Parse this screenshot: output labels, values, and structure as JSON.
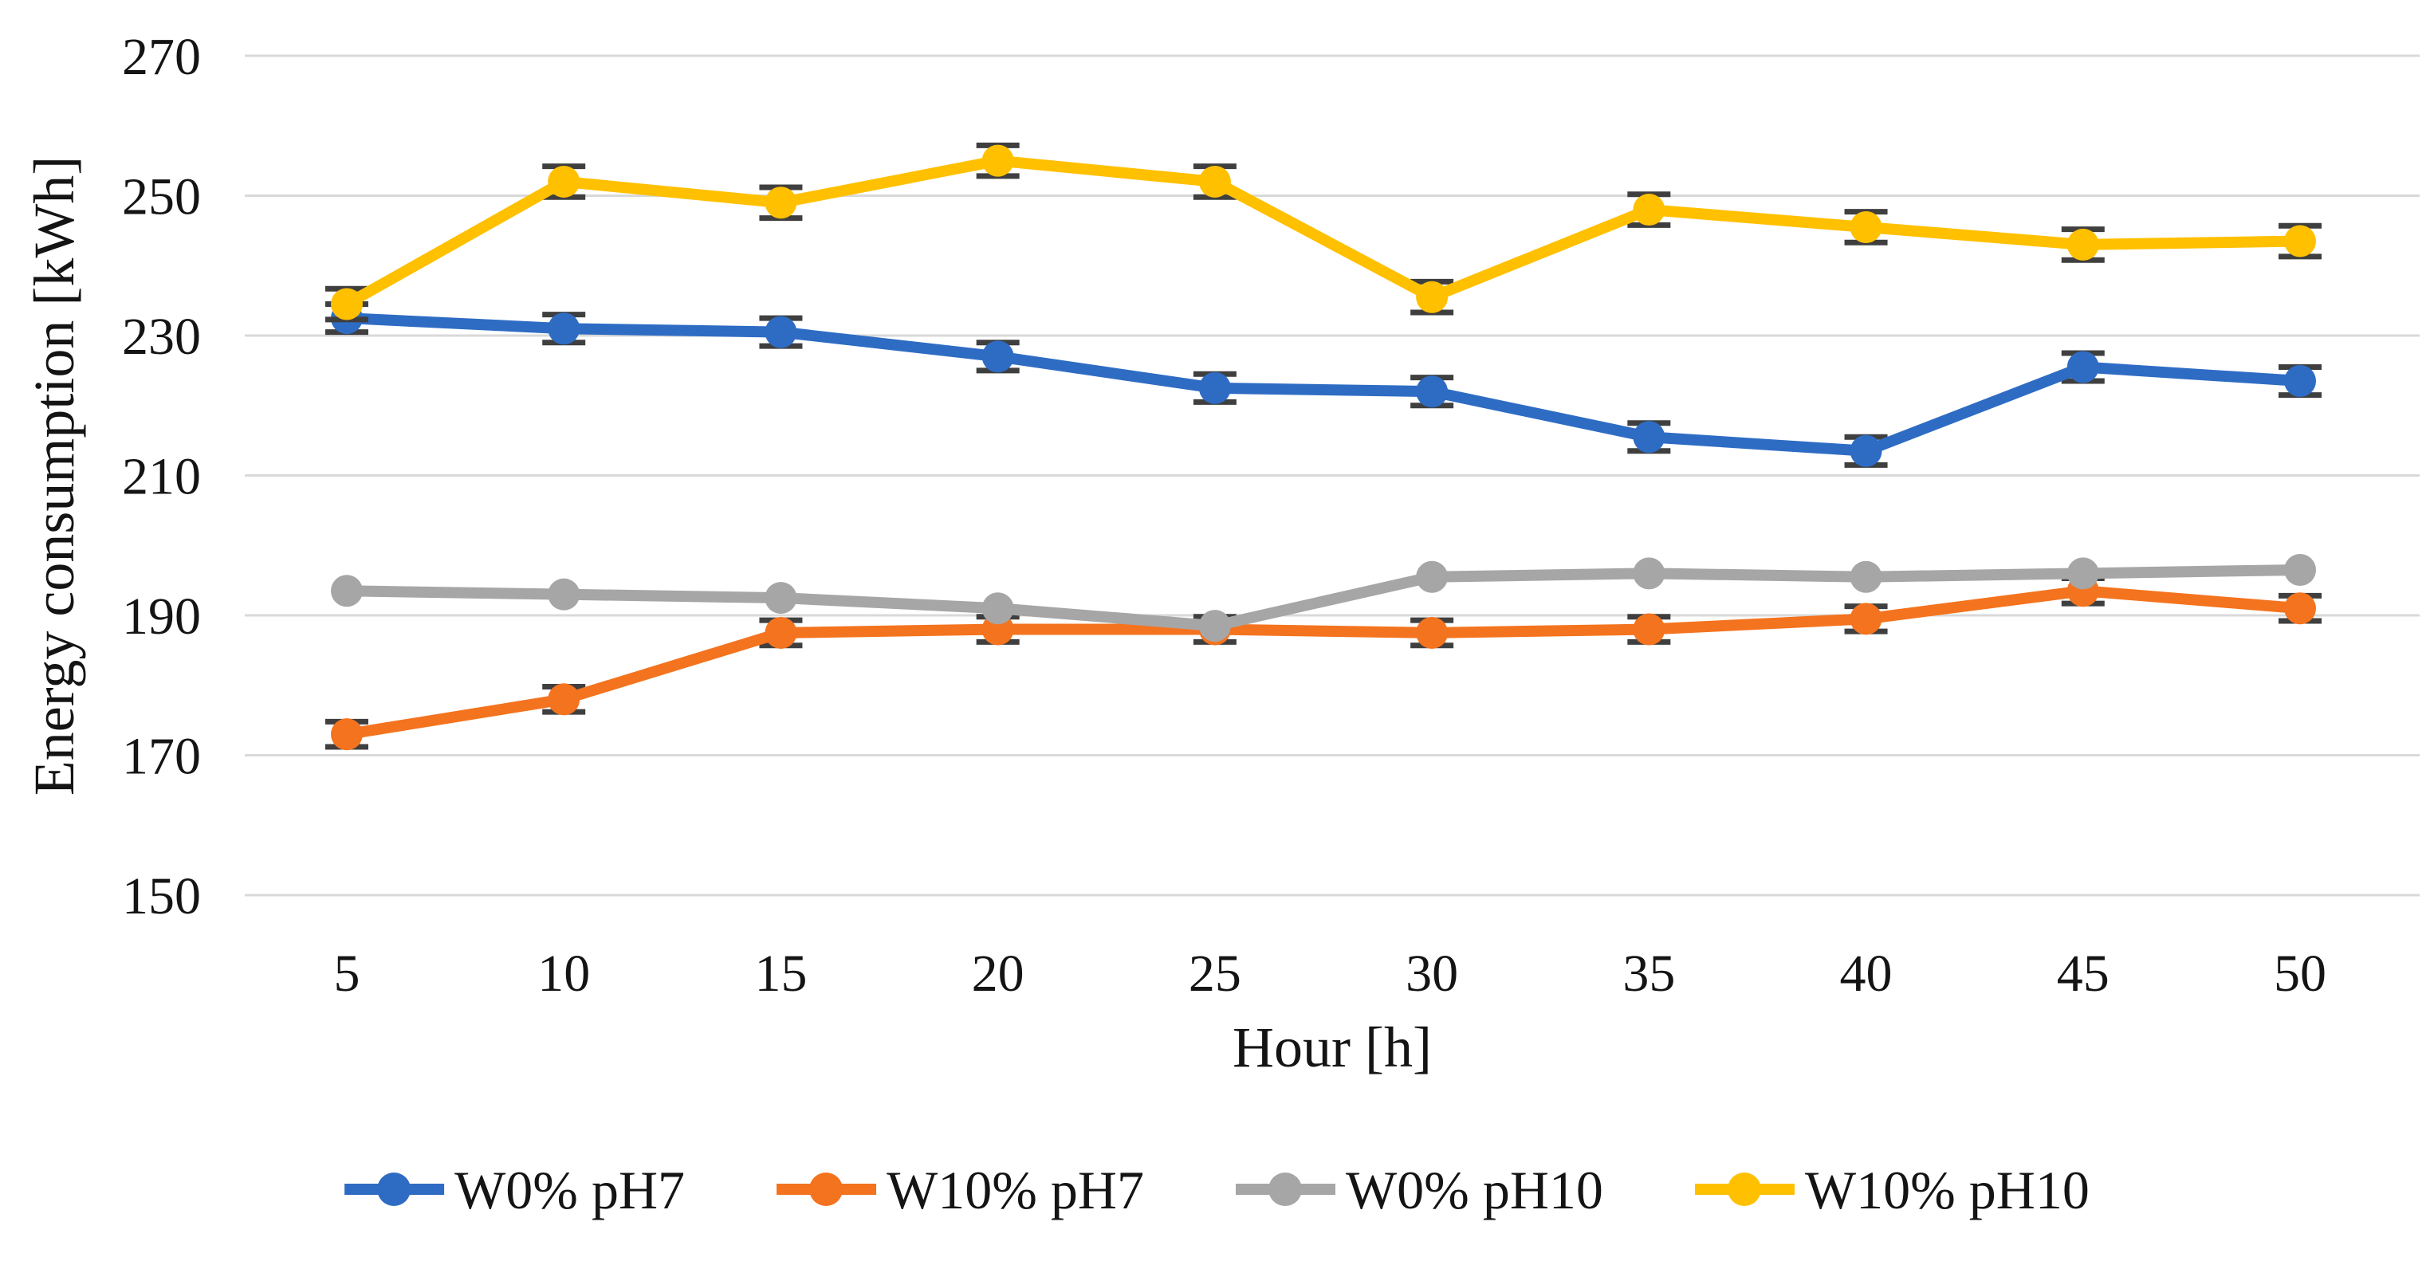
{
  "chart_data": {
    "type": "line",
    "title": "",
    "xlabel": "Hour [h]",
    "ylabel": "Energy consumption [kWh]",
    "x": [
      5,
      10,
      15,
      20,
      25,
      30,
      35,
      40,
      45,
      50
    ],
    "yticks": [
      150,
      170,
      190,
      210,
      230,
      250,
      270
    ],
    "ylim": [
      150,
      270
    ],
    "grid": "horizontal-only",
    "legend_position": "bottom",
    "series": [
      {
        "name": "W0% pH7",
        "color": "#2E6CC4",
        "marker": "circle",
        "error_bar_kwh": 2.0,
        "values": [
          232.5,
          231,
          230.5,
          227,
          222.5,
          222,
          215.5,
          213.5,
          225.5,
          223.5
        ]
      },
      {
        "name": "W10% pH7",
        "color": "#F4731E",
        "marker": "circle",
        "error_bar_kwh": 1.8,
        "values": [
          173,
          178,
          187.5,
          188,
          188,
          187.5,
          188,
          189.5,
          193.5,
          191
        ]
      },
      {
        "name": "W0% pH10",
        "color": "#A6A6A6",
        "marker": "circle",
        "error_bar_kwh": 0,
        "values": [
          193.5,
          193,
          192.5,
          191,
          188.5,
          195.5,
          196,
          195.5,
          196,
          196.5
        ]
      },
      {
        "name": "W10% pH10",
        "color": "#FFC000",
        "marker": "circle",
        "error_bar_kwh": 2.2,
        "values": [
          234.5,
          252,
          249,
          255,
          252,
          235.5,
          248,
          245.5,
          243,
          243.5
        ]
      }
    ],
    "styles": {
      "background": "#ffffff",
      "gridline_color": "#D9D9D9",
      "errorbar_color": "#3F3F3F",
      "text_color": "#141414"
    }
  }
}
